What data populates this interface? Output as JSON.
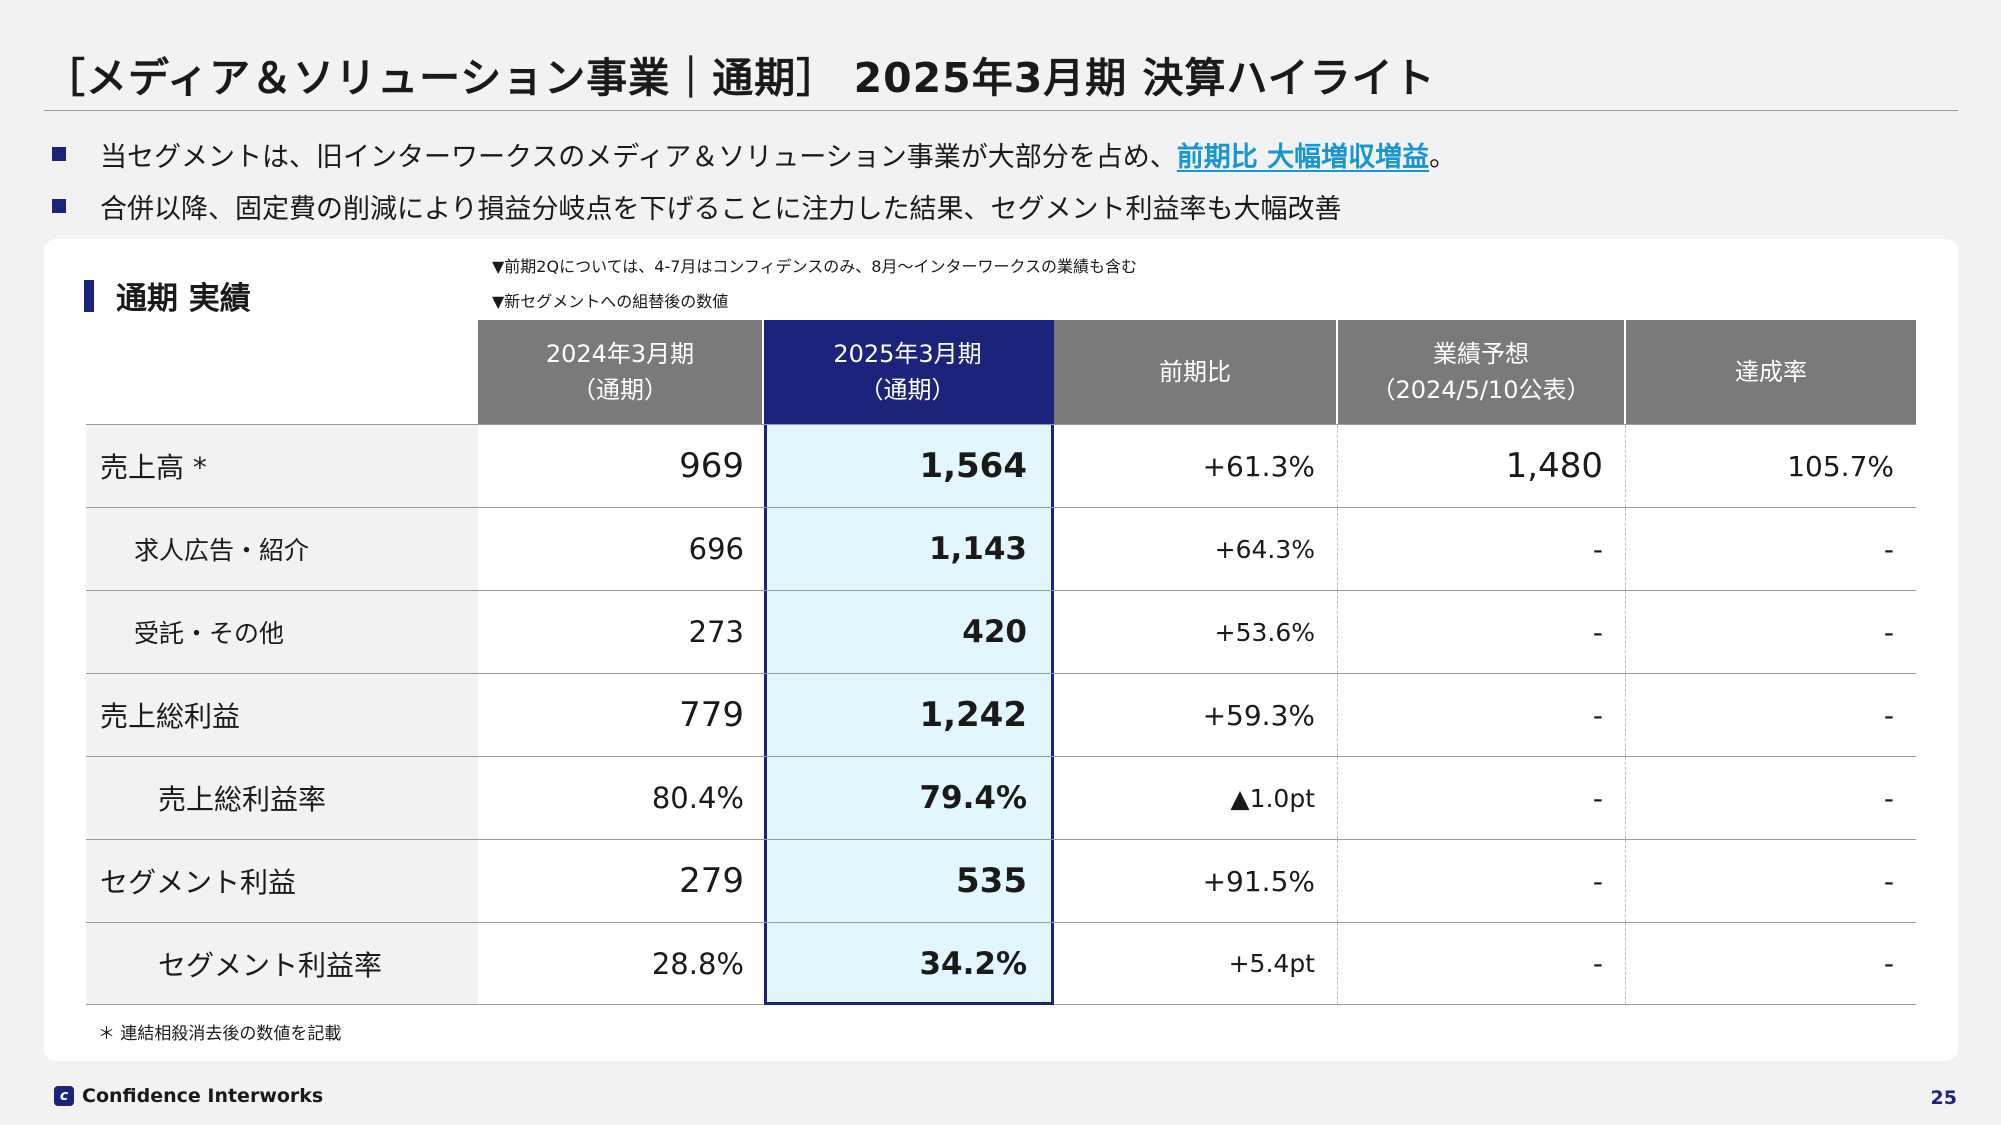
{
  "title": "［メディア＆ソリューション事業｜通期］ 2025年3月期 決算ハイライト",
  "bullets": [
    {
      "text": "当セグメントは、旧インターワークスのメディア＆ソリューション事業が大部分を占め、",
      "highlight": "前期比 大幅増収増益",
      "suffix": "。"
    },
    {
      "text": "合併以降、固定費の削減により損益分岐点を下げることに注力した結果、セグメント利益率も大幅改善",
      "highlight": "",
      "suffix": ""
    }
  ],
  "section_label": "通期 実績",
  "notes": [
    "▼前期2Qについては、4-7月はコンフィデンスのみ、8月～インターワークスの業績も含む",
    "▼新セグメントへの組替後の数値"
  ],
  "table": {
    "headers": {
      "prev": [
        "2024年3月期",
        "（通期）"
      ],
      "cur": [
        "2025年3月期",
        "（通期）"
      ],
      "yoy": [
        "前期比"
      ],
      "forecast": [
        "業績予想",
        "（2024/5/10公表）"
      ],
      "achievement": [
        "達成率"
      ]
    },
    "rows": [
      {
        "label": "売上高 *",
        "prev": "969",
        "cur": "1,564",
        "yoy": "+61.3%",
        "forecast": "1,480",
        "achievement": "105.7%"
      },
      {
        "label": "求人広告・紹介",
        "prev": "696",
        "cur": "1,143",
        "yoy": "+64.3%",
        "forecast": "-",
        "achievement": "-"
      },
      {
        "label": "受託・その他",
        "prev": "273",
        "cur": "420",
        "yoy": "+53.6%",
        "forecast": "-",
        "achievement": "-"
      },
      {
        "label": "売上総利益",
        "prev": "779",
        "cur": "1,242",
        "yoy": "+59.3%",
        "forecast": "-",
        "achievement": "-"
      },
      {
        "label": "売上総利益率",
        "prev": "80.4%",
        "cur": "79.4%",
        "yoy": "▲1.0pt",
        "forecast": "-",
        "achievement": "-"
      },
      {
        "label": "セグメント利益",
        "prev": "279",
        "cur": "535",
        "yoy": "+91.5%",
        "forecast": "-",
        "achievement": "-"
      },
      {
        "label": "セグメント利益率",
        "prev": "28.8%",
        "cur": "34.2%",
        "yoy": "+5.4pt",
        "forecast": "-",
        "achievement": "-"
      }
    ]
  },
  "footnote": "＊ 連結相殺消去後の数値を記載",
  "footer": {
    "logo_mark": "c",
    "company": "Confidence Interworks",
    "page": "25"
  },
  "colors": {
    "navy": "#1b237a",
    "accent": "#1896d1",
    "header_gray": "#7a7a7a",
    "highlight_bg": "#e2f6fd"
  }
}
